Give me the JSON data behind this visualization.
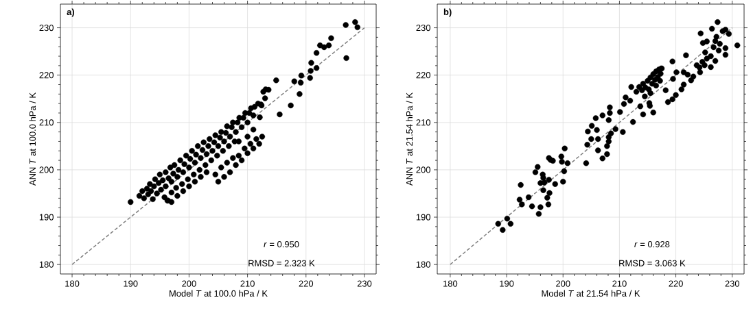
{
  "chart_data": [
    {
      "type": "scatter",
      "xlabel": "Model *T* at 100.0 hPa / K",
      "ylabel": "ANN *T* at 100.0 hPa / K",
      "annotations": [
        "**a)**",
        "*r* = 0.950",
        "RMSD = 2.323 K"
      ],
      "xlim": [
        178,
        232
      ],
      "ylim": [
        178,
        235
      ],
      "xticks": [
        180,
        190,
        200,
        210,
        220,
        230
      ],
      "yticks": [
        180,
        190,
        200,
        210,
        220,
        230
      ],
      "grid": true,
      "series": [
        {
          "type": "scatter",
          "color": "#000000",
          "marker": "circle",
          "x": [
            190.0,
            191.5,
            192,
            192.3,
            192.8,
            193,
            193.3,
            193.5,
            193.8,
            194,
            194.2,
            194.5,
            194.8,
            195,
            195.2,
            195.5,
            195.8,
            196,
            196,
            196.3,
            196.5,
            196.8,
            197,
            197,
            197.3,
            197.5,
            197.8,
            198,
            198.2,
            198.5,
            198.8,
            199,
            199.2,
            199.5,
            199.8,
            200,
            200.2,
            200.5,
            200.8,
            201,
            201.2,
            201.5,
            201.8,
            202,
            202.3,
            202.5,
            202.8,
            203,
            203.3,
            203.5,
            203.8,
            204,
            204.3,
            204.5,
            204.8,
            205,
            205.3,
            205.5,
            205.8,
            206,
            206.3,
            206.5,
            206.8,
            207,
            207.3,
            207.5,
            207.8,
            208,
            208.3,
            208.6,
            209,
            209.3,
            209.6,
            210,
            210.3,
            210.6,
            211,
            211.2,
            211.8,
            212.3,
            204.5,
            205,
            205.5,
            206,
            206.5,
            207,
            207.5,
            208,
            208.5,
            209,
            209.5,
            210,
            210.5,
            211,
            211.5,
            212,
            212.5,
            208.5,
            210,
            211,
            197,
            198,
            199,
            200,
            201,
            202,
            203,
            196.4,
            226.8,
            228.4,
            228.8,
            226.9,
            224.3,
            223.9,
            223.1,
            222.4,
            221.8,
            220.9,
            221.8,
            220.8,
            220.7,
            219.2,
            219.1,
            218.0,
            218.9,
            217.4,
            215.5,
            214.9,
            213.6,
            213.1,
            212.7,
            213.0,
            212.1,
            212.4
          ],
          "values": [
            193.2,
            194.5,
            195.5,
            194,
            196,
            194.8,
            197,
            195.5,
            193.8,
            196.5,
            198,
            195,
            197.2,
            199,
            195.8,
            197.8,
            194.2,
            199.5,
            196.5,
            193.5,
            198.2,
            200.5,
            195.2,
            197.5,
            199.2,
            201,
            196.2,
            198.5,
            200,
            202,
            197,
            199.5,
            201.2,
            203,
            198,
            200.5,
            202.3,
            204,
            199,
            201.5,
            203.2,
            205,
            200,
            202.5,
            204.2,
            205.8,
            201,
            203.3,
            205,
            206.5,
            202,
            204,
            205.8,
            207.3,
            203,
            205,
            206.8,
            208,
            204,
            206,
            207.8,
            209.2,
            205,
            207,
            209,
            210,
            206,
            208,
            210,
            211,
            209,
            211,
            212,
            210,
            212,
            213,
            211.5,
            213.3,
            214,
            213.8,
            199,
            197.5,
            200.5,
            198.5,
            201.5,
            199.5,
            202.5,
            201,
            203,
            202,
            204.5,
            203.5,
            205.5,
            204.5,
            206.5,
            205.5,
            207,
            206,
            207,
            208.5,
            193.2,
            194.5,
            195.5,
            196.5,
            197.5,
            198.5,
            199.5,
            193.5,
            230.6,
            231.2,
            230.1,
            223.6,
            227.8,
            226.3,
            225.9,
            226.3,
            224.7,
            222.6,
            221.5,
            220.9,
            219.4,
            219.9,
            218.4,
            218.7,
            216.0,
            213.6,
            211.7,
            218.9,
            216.9,
            217.0,
            216.5,
            215.1,
            211.1,
            213.6
          ]
        },
        {
          "type": "line",
          "color": "#808080",
          "line_style": "dashed",
          "marker": "none",
          "x": [
            180,
            230
          ],
          "values": [
            180,
            230
          ]
        }
      ]
    },
    {
      "type": "scatter",
      "xlabel": "Model *T* at 21.54 hPa / K",
      "ylabel": "ANN *T* at 21.54 hPa / K",
      "annotations": [
        "**b)**",
        "*r* = 0.928",
        "RMSD = 3.063 K"
      ],
      "xlim": [
        177.7,
        232.1
      ],
      "ylim": [
        178,
        235
      ],
      "xticks": [
        180,
        190,
        200,
        210,
        220,
        230
      ],
      "yticks": [
        180,
        190,
        200,
        210,
        220,
        230
      ],
      "grid": true,
      "series": [
        {
          "type": "scatter",
          "color": "#000000",
          "marker": "circle",
          "x": [
            188.5,
            189.3,
            190.1,
            190.7,
            192.3,
            192.7,
            192.5,
            193.9,
            194.5,
            195.1,
            195.5,
            195.7,
            196.0,
            196.0,
            196.4,
            196.5,
            196.5,
            196.7,
            197.2,
            197.4,
            197.6,
            197.5,
            197.5,
            197.8,
            198.2,
            198.6,
            199.7,
            200.0,
            200.3,
            199.8,
            200.2,
            200.8,
            204.1,
            207.0,
            206.2,
            207.8,
            204.3,
            205.0,
            206.2,
            204.4,
            205.1,
            206.0,
            205.8,
            207.0,
            208.1,
            208.1,
            208.5,
            208.1,
            207.8,
            208.3,
            208.3,
            209.3,
            210.6,
            210.1,
            210.8,
            211.1,
            211.9,
            212.4,
            213.7,
            214.2,
            215.3,
            216.0,
            215.4,
            218.6,
            218.2,
            219.4,
            220.0,
            219.5,
            220.1,
            219.4,
            221.0,
            221.4,
            221.4,
            222.1,
            222.7,
            223.1,
            221.8,
            223.7,
            224.3,
            224.2,
            225.1,
            224.7,
            225.5,
            226.2,
            227.0,
            226.2,
            225.2,
            224.8,
            225.5,
            224.4,
            226.4,
            227.0,
            226.7,
            227.2,
            227.4,
            227.8,
            227.6,
            228.3,
            228.8,
            229.4,
            228.8,
            228.8,
            230.9,
            212.1,
            213.0,
            213.5,
            214,
            214.2,
            214.6,
            215,
            215.2,
            215.5,
            215.8,
            216,
            216.3,
            216.5,
            216.8,
            217,
            217.3,
            217.5,
            214.5,
            215.5,
            216.5,
            217.2,
            217.4
          ],
          "values": [
            188.6,
            187.3,
            189.7,
            188.6,
            193.7,
            192.7,
            196.8,
            194.2,
            192.3,
            199.5,
            200.6,
            190.7,
            192.1,
            197.2,
            199.0,
            195.7,
            198.3,
            197.3,
            194.1,
            192.7,
            195.1,
            197.9,
            202.5,
            202.1,
            201.9,
            197.0,
            202.8,
            197.5,
            204.5,
            201.7,
            199.7,
            201.4,
            201.4,
            202.4,
            204.1,
            203.3,
            205.3,
            206.5,
            206.5,
            208.1,
            209.3,
            208.4,
            210.9,
            211.5,
            210.5,
            206.9,
            207.7,
            206.0,
            205.0,
            213.2,
            212.0,
            208.6,
            208.0,
            212.2,
            213.9,
            215.3,
            214.6,
            210.1,
            213.4,
            211.7,
            214.1,
            212.1,
            213.5,
            214.3,
            216.8,
            214.9,
            215.8,
            219.2,
            220.6,
            222.9,
            217.0,
            218.0,
            220.6,
            220.1,
            218.9,
            219.7,
            224.2,
            222.1,
            220.6,
            221.6,
            222.1,
            222.8,
            223.5,
            221.7,
            223.0,
            224.0,
            224.8,
            226.8,
            227.1,
            228.8,
            229.8,
            227.2,
            225.9,
            228.1,
            231.2,
            226.6,
            225.2,
            229.3,
            229.6,
            228.7,
            225.7,
            224.3,
            226.3,
            217.5,
            216.5,
            217.5,
            216.8,
            218.2,
            217.4,
            218.8,
            217,
            219.5,
            218.2,
            220.2,
            219,
            220.8,
            219.6,
            221.2,
            220.3,
            221.4,
            215.5,
            216.2,
            217.8,
            218.8,
            221.4
          ]
        },
        {
          "type": "line",
          "color": "#808080",
          "line_style": "dashed",
          "marker": "none",
          "x": [
            180,
            230
          ],
          "values": [
            180,
            230
          ]
        }
      ]
    }
  ]
}
